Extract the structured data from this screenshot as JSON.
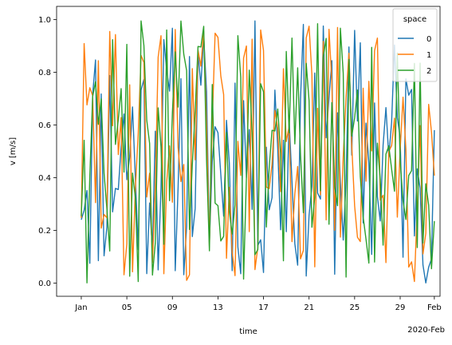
{
  "chart_data": {
    "type": "line",
    "xlabel": "time",
    "ylabel": "v [m/s]",
    "x_offset_label": "2020-Feb",
    "x_range": [
      "2019-12-29T20:00",
      "2020-02-01T12:00"
    ],
    "ylim": [
      -0.05,
      1.05
    ],
    "x_ticks": [
      {
        "date": "2020-01-01",
        "label": "Jan"
      },
      {
        "date": "2020-01-05",
        "label": "05"
      },
      {
        "date": "2020-01-09",
        "label": "09"
      },
      {
        "date": "2020-01-13",
        "label": "13"
      },
      {
        "date": "2020-01-17",
        "label": "17"
      },
      {
        "date": "2020-01-21",
        "label": "21"
      },
      {
        "date": "2020-01-25",
        "label": "25"
      },
      {
        "date": "2020-01-29",
        "label": "29"
      },
      {
        "date": "2020-02-01",
        "label": "Feb"
      }
    ],
    "y_ticks": [
      {
        "value": 0.0,
        "label": "0.0"
      },
      {
        "value": 0.2,
        "label": "0.2"
      },
      {
        "value": 0.4,
        "label": "0.4"
      },
      {
        "value": 0.6,
        "label": "0.6"
      },
      {
        "value": 0.8,
        "label": "0.8"
      },
      {
        "value": 1.0,
        "label": "1.0"
      }
    ],
    "grid": false,
    "legend": {
      "title": "space",
      "placement": "top-right"
    },
    "time": {
      "start": "2020-01-01T00:00",
      "end": "2020-02-01T00:00",
      "step_hours": 6
    },
    "series": [
      {
        "name": "0",
        "color": "#1f77b4",
        "seed": 11
      },
      {
        "name": "1",
        "color": "#ff7f0e",
        "seed": 29
      },
      {
        "name": "2",
        "color": "#2ca02c",
        "seed": 47
      }
    ]
  }
}
